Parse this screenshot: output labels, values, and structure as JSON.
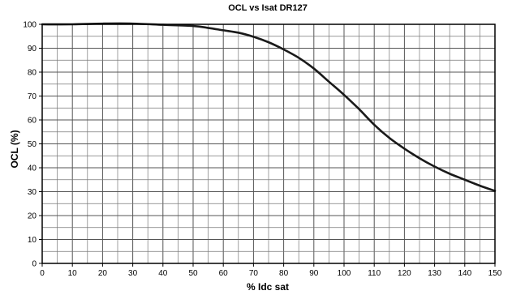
{
  "chart_data": {
    "type": "line",
    "title": "OCL vs Isat DR127",
    "xlabel": "% Idc sat",
    "ylabel": "OCL (%)",
    "xlim": [
      0,
      150
    ],
    "ylim": [
      0,
      100
    ],
    "x_ticks": [
      0,
      10,
      20,
      30,
      40,
      50,
      60,
      70,
      80,
      90,
      100,
      110,
      120,
      130,
      140,
      150
    ],
    "y_ticks": [
      0,
      10,
      20,
      30,
      40,
      50,
      60,
      70,
      80,
      90,
      100
    ],
    "x_minor_step": 5,
    "y_minor_step": 5,
    "grid": true,
    "line_color": "#1a1a1a",
    "series": [
      {
        "x": [
          0,
          10,
          20,
          30,
          40,
          50,
          55,
          60,
          65,
          70,
          75,
          80,
          85,
          90,
          95,
          100,
          105,
          110,
          115,
          120,
          125,
          130,
          135,
          140,
          145,
          150
        ],
        "y": [
          100,
          100,
          100.3,
          100.3,
          99.8,
          99.3,
          98.5,
          97.5,
          96.5,
          94.8,
          92.5,
          89.5,
          86,
          81.5,
          76,
          70.5,
          64.5,
          58,
          52.5,
          48,
          44,
          40.5,
          37.5,
          35,
          32.5,
          30.3
        ]
      }
    ]
  }
}
